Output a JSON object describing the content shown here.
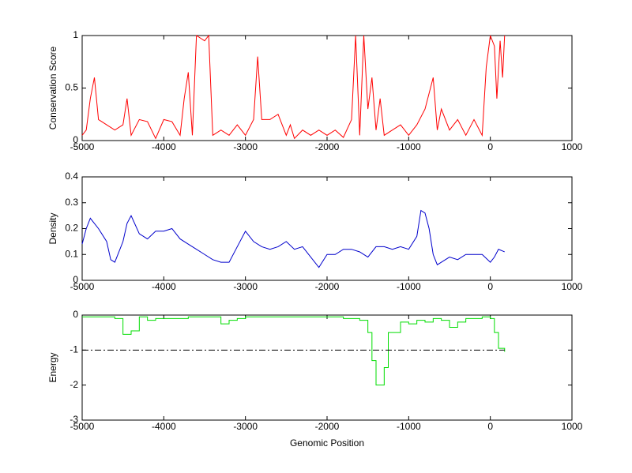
{
  "chart_data": [
    {
      "type": "line",
      "ylabel": "Conservation Score",
      "xlim": [
        -5000,
        1000
      ],
      "xticks": [
        -5000,
        -4000,
        -3000,
        -2000,
        -1000,
        0,
        1000
      ],
      "ylim": [
        0,
        1
      ],
      "yticks": [
        0,
        0.5,
        1
      ],
      "series": [
        {
          "color": "#ff0000",
          "x": [
            -5000,
            -4950,
            -4900,
            -4850,
            -4800,
            -4700,
            -4600,
            -4500,
            -4450,
            -4400,
            -4300,
            -4200,
            -4100,
            -4000,
            -3900,
            -3800,
            -3750,
            -3700,
            -3650,
            -3600,
            -3500,
            -3450,
            -3400,
            -3300,
            -3200,
            -3100,
            -3000,
            -2900,
            -2850,
            -2800,
            -2700,
            -2600,
            -2500,
            -2450,
            -2400,
            -2300,
            -2200,
            -2100,
            -2000,
            -1900,
            -1800,
            -1700,
            -1650,
            -1600,
            -1550,
            -1500,
            -1450,
            -1400,
            -1350,
            -1300,
            -1200,
            -1100,
            -1000,
            -900,
            -800,
            -700,
            -650,
            -600,
            -500,
            -400,
            -300,
            -200,
            -100,
            -50,
            0,
            50,
            80,
            120,
            150,
            175
          ],
          "values": [
            0.05,
            0.1,
            0.4,
            0.6,
            0.2,
            0.15,
            0.1,
            0.15,
            0.4,
            0.05,
            0.2,
            0.18,
            0.02,
            0.2,
            0.18,
            0.05,
            0.4,
            0.65,
            0.05,
            1,
            0.95,
            1,
            0.05,
            0.1,
            0.05,
            0.15,
            0.05,
            0.2,
            0.8,
            0.2,
            0.2,
            0.25,
            0.05,
            0.15,
            0.02,
            0.1,
            0.05,
            0.1,
            0.05,
            0.1,
            0.03,
            0.2,
            1,
            0.05,
            1,
            0.3,
            0.6,
            0.1,
            0.4,
            0.05,
            0.1,
            0.15,
            0.05,
            0.15,
            0.3,
            0.6,
            0.1,
            0.3,
            0.1,
            0.2,
            0.05,
            0.2,
            0.05,
            0.7,
            1,
            0.9,
            0.4,
            0.95,
            0.6,
            1
          ]
        }
      ]
    },
    {
      "type": "line",
      "ylabel": "Density",
      "xlim": [
        -5000,
        1000
      ],
      "xticks": [
        -5000,
        -4000,
        -3000,
        -2000,
        -1000,
        0,
        1000
      ],
      "ylim": [
        0,
        0.4
      ],
      "yticks": [
        0,
        0.1,
        0.2,
        0.3,
        0.4
      ],
      "series": [
        {
          "color": "#0000cc",
          "x": [
            -5000,
            -4950,
            -4900,
            -4800,
            -4700,
            -4650,
            -4600,
            -4500,
            -4450,
            -4400,
            -4300,
            -4200,
            -4100,
            -4000,
            -3900,
            -3800,
            -3700,
            -3600,
            -3500,
            -3400,
            -3300,
            -3200,
            -3100,
            -3000,
            -2900,
            -2800,
            -2700,
            -2600,
            -2500,
            -2400,
            -2300,
            -2200,
            -2100,
            -2000,
            -1900,
            -1800,
            -1700,
            -1600,
            -1500,
            -1400,
            -1300,
            -1200,
            -1100,
            -1000,
            -900,
            -850,
            -800,
            -750,
            -700,
            -650,
            -600,
            -500,
            -400,
            -300,
            -200,
            -100,
            0,
            50,
            100,
            175
          ],
          "values": [
            0.14,
            0.2,
            0.24,
            0.2,
            0.15,
            0.08,
            0.07,
            0.15,
            0.22,
            0.25,
            0.18,
            0.16,
            0.19,
            0.19,
            0.2,
            0.16,
            0.14,
            0.12,
            0.1,
            0.08,
            0.07,
            0.07,
            0.13,
            0.19,
            0.15,
            0.13,
            0.12,
            0.13,
            0.15,
            0.12,
            0.13,
            0.09,
            0.05,
            0.1,
            0.1,
            0.12,
            0.12,
            0.11,
            0.09,
            0.13,
            0.13,
            0.12,
            0.13,
            0.12,
            0.17,
            0.27,
            0.26,
            0.2,
            0.1,
            0.06,
            0.07,
            0.09,
            0.08,
            0.1,
            0.1,
            0.1,
            0.07,
            0.09,
            0.12,
            0.11
          ]
        }
      ]
    },
    {
      "type": "line",
      "ylabel": "Energy",
      "xlabel": "Genomic Position",
      "xlim": [
        -5000,
        1000
      ],
      "xticks": [
        -5000,
        -4000,
        -3000,
        -2000,
        -1000,
        0,
        1000
      ],
      "ylim": [
        -3,
        0
      ],
      "yticks": [
        -3,
        -2,
        -1,
        0
      ],
      "series": [
        {
          "color": "#00dd00",
          "drawstyle": "steps-post",
          "x": [
            -5000,
            -4700,
            -4600,
            -4500,
            -4400,
            -4300,
            -4200,
            -4100,
            -4000,
            -3700,
            -3400,
            -3300,
            -3200,
            -3100,
            -3000,
            -2000,
            -1800,
            -1600,
            -1500,
            -1450,
            -1400,
            -1300,
            -1250,
            -1100,
            -1000,
            -900,
            -800,
            -700,
            -600,
            -500,
            -400,
            -300,
            -200,
            -100,
            0,
            50,
            100,
            175
          ],
          "values": [
            -0.05,
            -0.05,
            -0.1,
            -0.55,
            -0.45,
            -0.05,
            -0.15,
            -0.1,
            -0.1,
            -0.05,
            -0.05,
            -0.25,
            -0.15,
            -0.1,
            -0.05,
            -0.05,
            -0.1,
            -0.15,
            -0.5,
            -1.3,
            -2,
            -1.5,
            -0.5,
            -0.2,
            -0.25,
            -0.15,
            -0.2,
            -0.1,
            -0.15,
            -0.35,
            -0.2,
            -0.1,
            -0.1,
            -0.05,
            -0.1,
            -0.5,
            -0.95,
            -1.05
          ]
        },
        {
          "color": "#000000",
          "dash": "dashdot",
          "x": [
            -5000,
            175
          ],
          "values": [
            -1,
            -1
          ]
        }
      ]
    }
  ]
}
